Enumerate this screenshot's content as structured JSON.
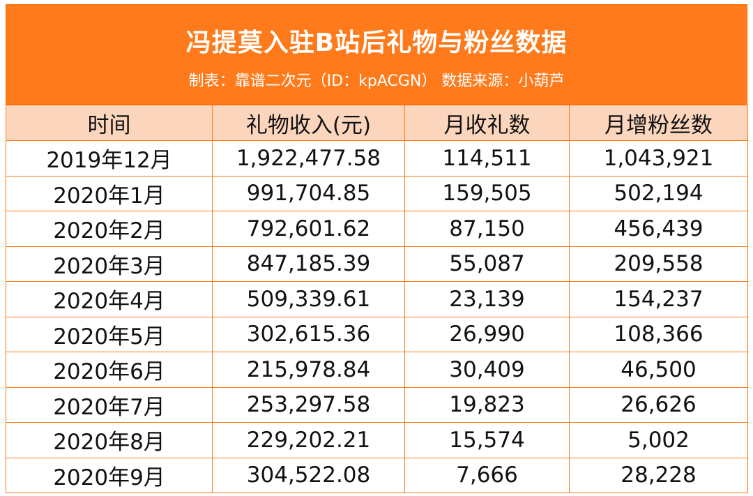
{
  "title": "冯提莫入驻B站后礼物与粉丝数据",
  "subtitle": "制表：靠谱二次元（ID：kpACGN） 数据来源：小葫芦",
  "colors": {
    "banner": "#ff7a1a",
    "header_row": "#fbd6bd",
    "border": "#ff7a1a"
  },
  "table": {
    "headers": [
      "时间",
      "礼物收入(元)",
      "月收礼数",
      "月增粉丝数"
    ],
    "rows": [
      [
        "2019年12月",
        "1,922,477.58",
        "114,511",
        "1,043,921"
      ],
      [
        "2020年1月",
        "991,704.85",
        "159,505",
        "502,194"
      ],
      [
        "2020年2月",
        "792,601.62",
        "87,150",
        "456,439"
      ],
      [
        "2020年3月",
        "847,185.39",
        "55,087",
        "209,558"
      ],
      [
        "2020年4月",
        "509,339.61",
        "23,139",
        "154,237"
      ],
      [
        "2020年5月",
        "302,615.36",
        "26,990",
        "108,366"
      ],
      [
        "2020年6月",
        "215,978.84",
        "30,409",
        "46,500"
      ],
      [
        "2020年7月",
        "253,297.58",
        "19,823",
        "26,626"
      ],
      [
        "2020年8月",
        "229,202.21",
        "15,574",
        "5,002"
      ],
      [
        "2020年9月",
        "304,522.08",
        "7,666",
        "28,228"
      ]
    ]
  }
}
